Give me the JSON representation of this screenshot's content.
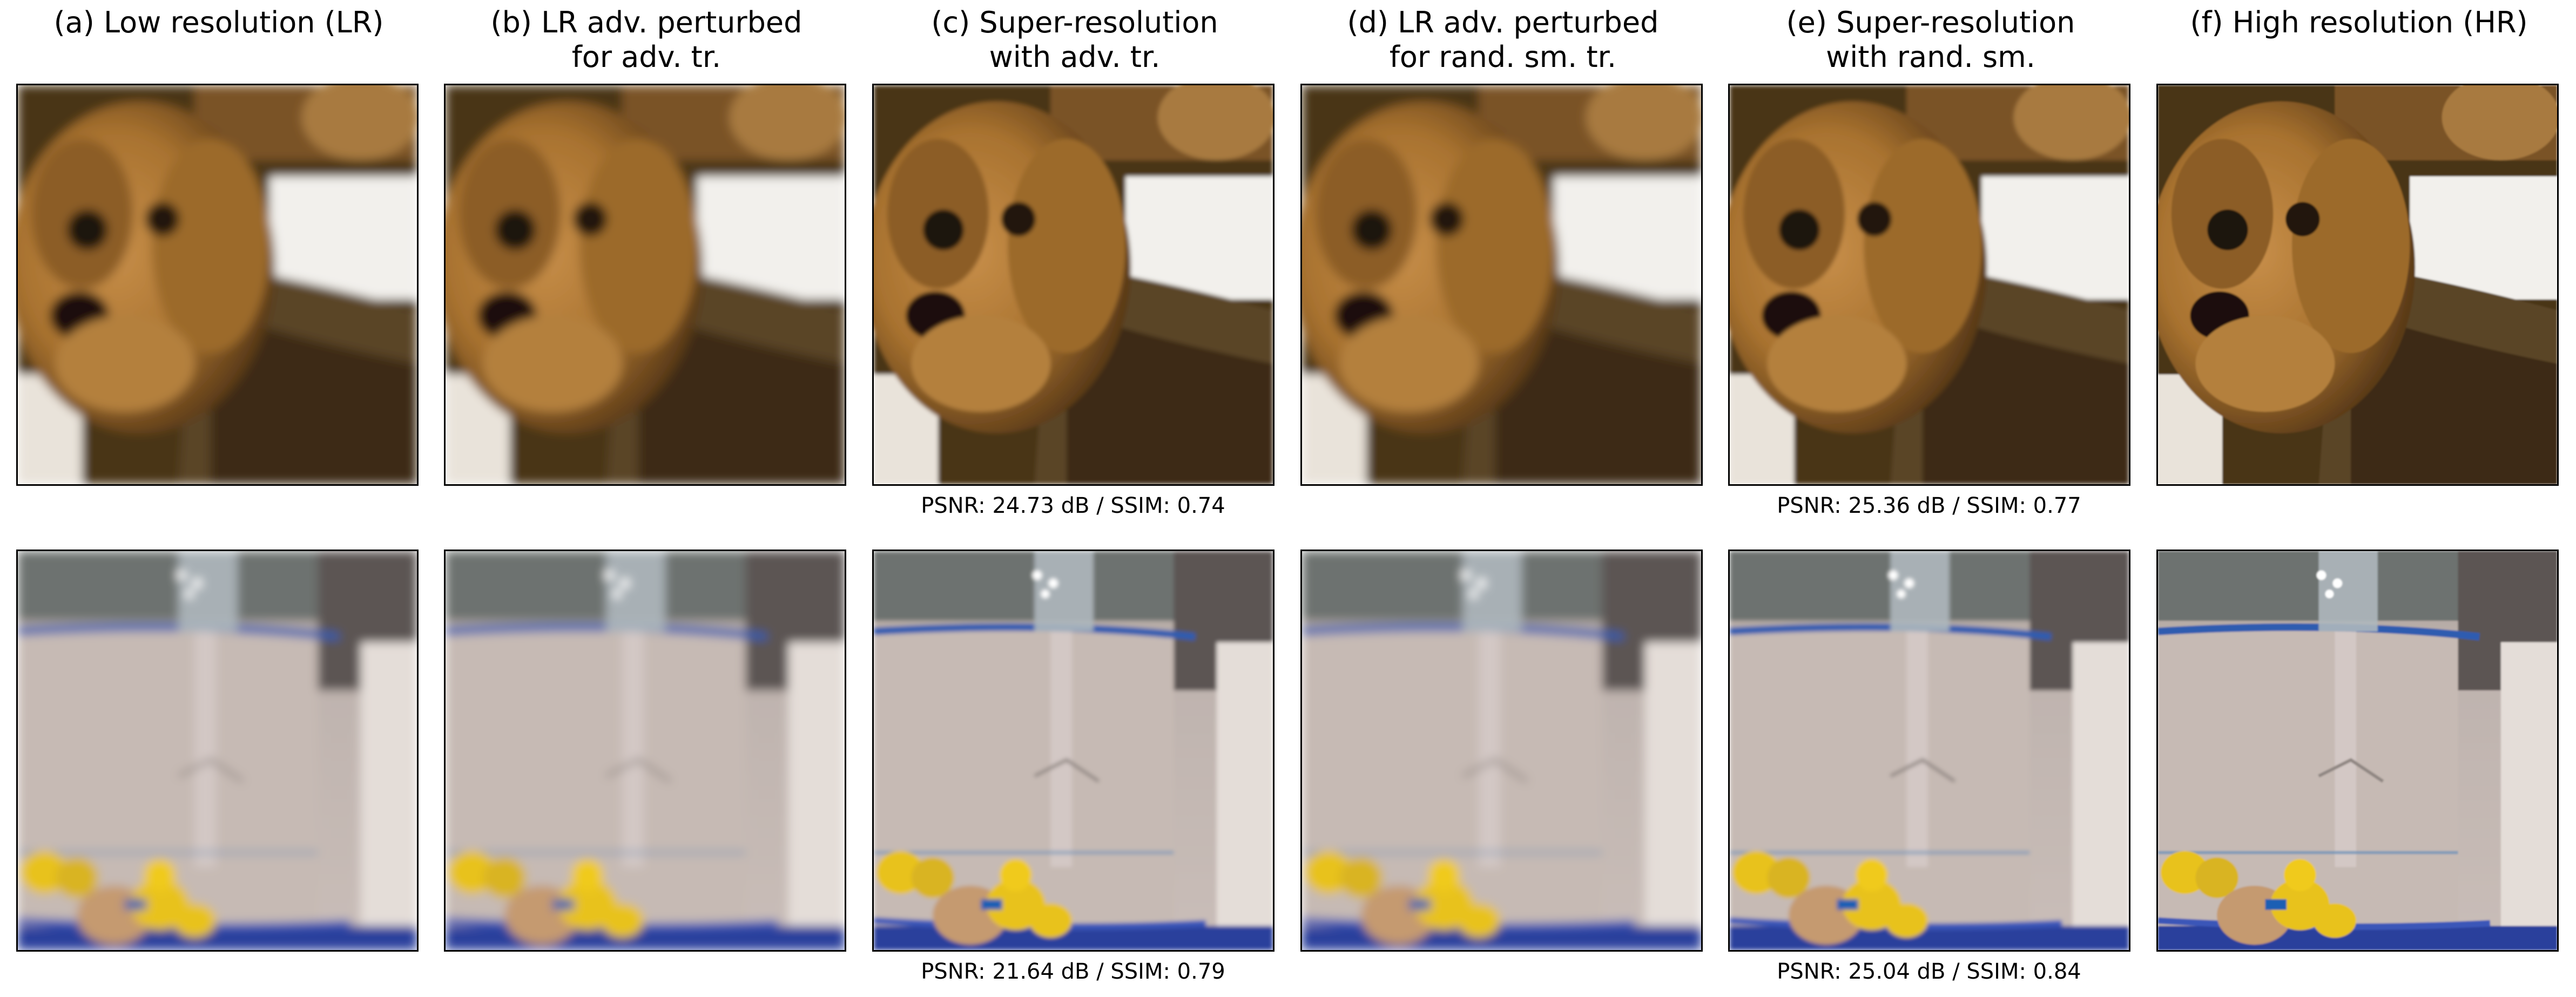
{
  "columns": [
    {
      "title": "(a) Low resolution (LR)"
    },
    {
      "title": "(b) LR adv. perturbed\nfor adv. tr."
    },
    {
      "title": "(c) Super-resolution\nwith adv. tr."
    },
    {
      "title": "(d) LR adv. perturbed\nfor rand. sm. tr."
    },
    {
      "title": "(e) Super-resolution\nwith rand. sm."
    },
    {
      "title": "(f) High resolution (HR)"
    }
  ],
  "rows": [
    {
      "subject": "dog",
      "metrics": {
        "c": "PSNR: 24.73 dB / SSIM: 0.74",
        "e": "PSNR: 25.36 dB / SSIM: 0.77"
      }
    },
    {
      "subject": "bottle-with-rubber-ducks",
      "metrics": {
        "c": "PSNR: 21.64 dB / SSIM: 0.79",
        "e": "PSNR: 25.04 dB / SSIM: 0.84"
      }
    }
  ],
  "colors": {
    "dog_fur": "#b07a3a",
    "dog_dark": "#3a2612",
    "blanket": "#f1efea",
    "wall": "#b9aaa4",
    "bottle_band": "#2f5bb0",
    "duck": "#e8c21a"
  }
}
